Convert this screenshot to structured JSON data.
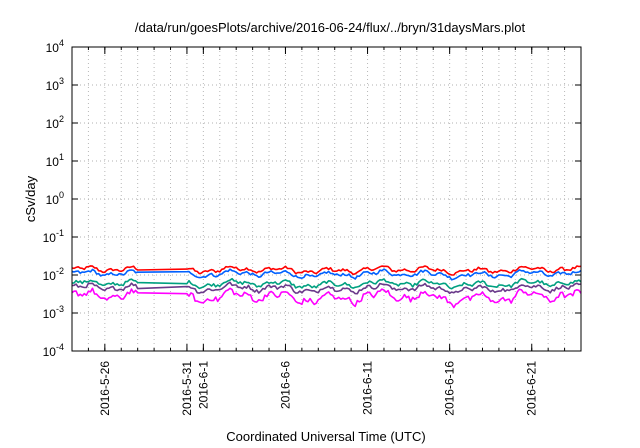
{
  "chart_data": {
    "type": "line",
    "title": "/data/run/goesPlots/archive/2016-06-24/flux/../bryn/31daysMars.plot",
    "xlabel": "Coordinated Universal Time (UTC)",
    "ylabel": "cSv/day",
    "y_scale": "log",
    "ylim": [
      0.0001,
      10000
    ],
    "y_ticks": [
      {
        "value": 0.0001,
        "base": "10",
        "exp": "-4"
      },
      {
        "value": 0.001,
        "base": "10",
        "exp": "-3"
      },
      {
        "value": 0.01,
        "base": "10",
        "exp": "-2"
      },
      {
        "value": 0.1,
        "base": "10",
        "exp": "-1"
      },
      {
        "value": 1,
        "base": "10",
        "exp": "0"
      },
      {
        "value": 10,
        "base": "10",
        "exp": "1"
      },
      {
        "value": 100,
        "base": "10",
        "exp": "2"
      },
      {
        "value": 1000,
        "base": "10",
        "exp": "3"
      },
      {
        "value": 10000,
        "base": "10",
        "exp": "4"
      }
    ],
    "xlim": [
      "2016-05-24",
      "2016-06-24"
    ],
    "x_ticks": [
      "2016-5-26",
      "2016-5-31",
      "2016-6-1",
      "2016-6-6",
      "2016-6-11",
      "2016-6-16",
      "2016-6-21"
    ],
    "x_tick_dates": [
      "2016-05-26",
      "2016-05-31",
      "2016-06-01",
      "2016-06-06",
      "2016-06-11",
      "2016-06-16",
      "2016-06-21"
    ],
    "grid": true,
    "data_gap": [
      "2016-05-28",
      "2016-05-31"
    ],
    "series": [
      {
        "color": "#ff0000",
        "baseline": 0.0135,
        "amplitude": 0.14
      },
      {
        "color": "#0060ff",
        "baseline": 0.0105,
        "amplitude": 0.15
      },
      {
        "color": "#00a080",
        "baseline": 0.0058,
        "amplitude": 0.16
      },
      {
        "color": "#6a3a8a",
        "baseline": 0.0044,
        "amplitude": 0.18
      },
      {
        "color": "#ff00ff",
        "baseline": 0.0026,
        "amplitude": 0.28
      }
    ]
  }
}
